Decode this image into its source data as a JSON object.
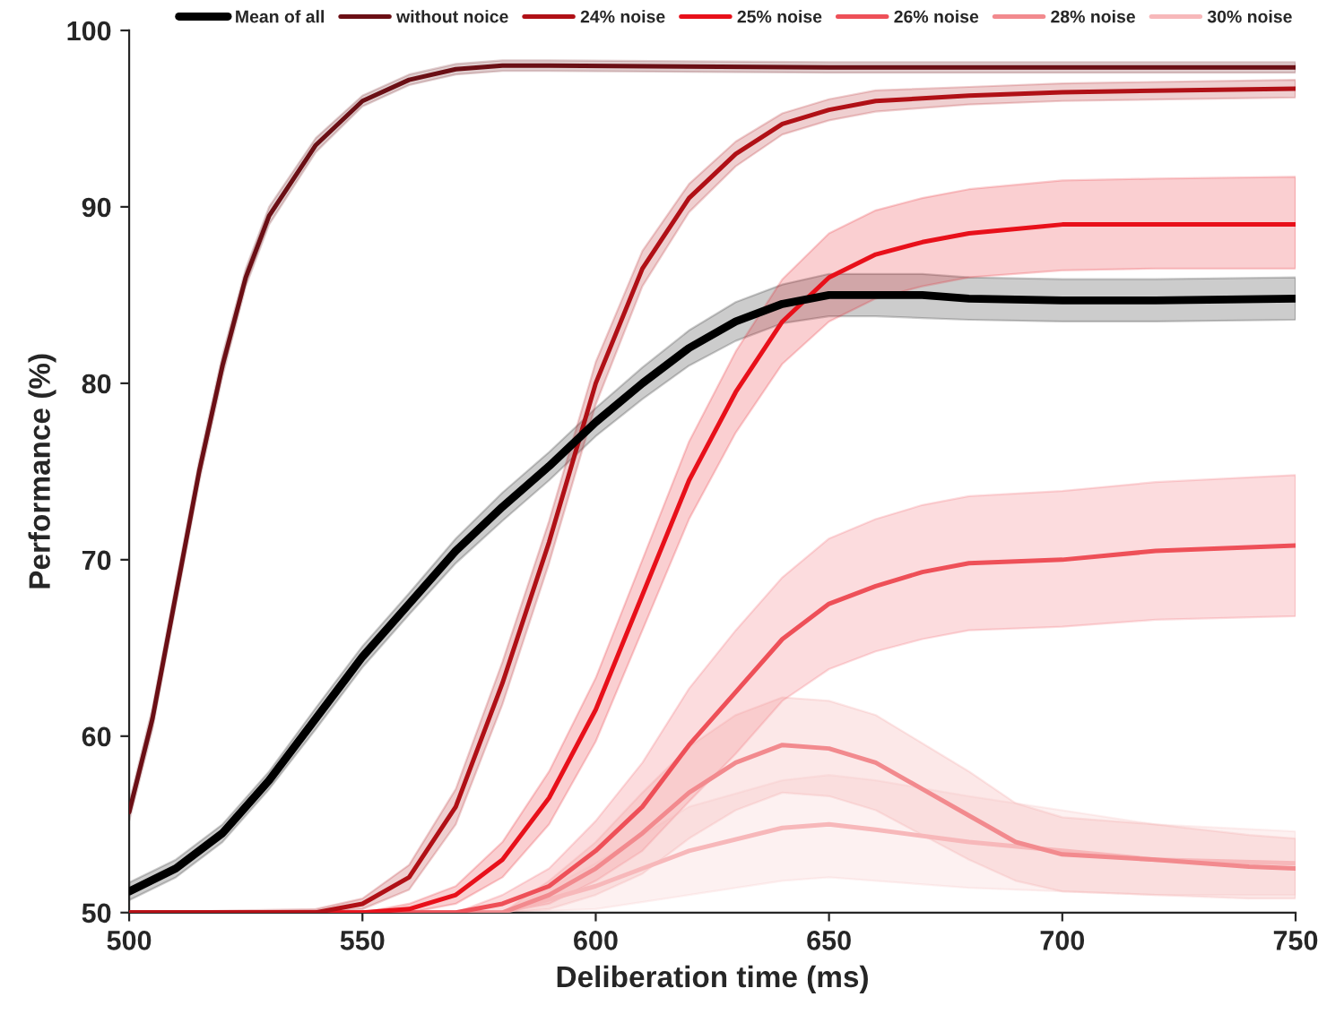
{
  "chart_data": {
    "type": "line",
    "xlabel": "Deliberation time (ms)",
    "ylabel": "Performance (%)",
    "xlim": [
      500,
      750
    ],
    "xticks": [
      500,
      550,
      600,
      650,
      700,
      750
    ],
    "ylim": [
      50,
      100
    ],
    "yticks": [
      50,
      60,
      70,
      80,
      90,
      100
    ],
    "grid": false,
    "legend": "top",
    "marker": "none",
    "line_style": "solid",
    "series": [
      {
        "name": "Mean of all",
        "color": "#000000",
        "x": [
          500,
          510,
          520,
          530,
          540,
          550,
          560,
          570,
          580,
          590,
          600,
          610,
          620,
          630,
          640,
          650,
          660,
          670,
          680,
          700,
          720,
          750
        ],
        "values": [
          51.2,
          52.5,
          54.5,
          57.5,
          61,
          64.5,
          67.5,
          70.5,
          73,
          75.3,
          77.8,
          80,
          82,
          83.5,
          84.5,
          85,
          85,
          85,
          84.8,
          84.7,
          84.7,
          84.8
        ],
        "lower": [
          50.7,
          52,
          54,
          57,
          60.4,
          63.9,
          66.9,
          69.8,
          72.2,
          74.5,
          77,
          79.1,
          81,
          82.4,
          83.4,
          83.8,
          83.8,
          83.7,
          83.6,
          83.5,
          83.5,
          83.6
        ],
        "upper": [
          51.7,
          53,
          55,
          58,
          61.6,
          65.1,
          68.1,
          71.2,
          73.8,
          76.1,
          78.6,
          80.9,
          83,
          84.6,
          85.6,
          86.2,
          86.2,
          86.2,
          86,
          85.9,
          85.9,
          86
        ]
      },
      {
        "name": "without noice",
        "color": "#6b0f15",
        "x": [
          500,
          505,
          510,
          515,
          520,
          525,
          530,
          540,
          550,
          560,
          570,
          580,
          590,
          650,
          700,
          750
        ],
        "values": [
          55.7,
          61,
          68,
          75,
          81,
          86,
          89.5,
          93.5,
          96,
          97.2,
          97.8,
          98,
          98,
          97.9,
          97.9,
          97.9
        ],
        "lower": [
          55.2,
          60.4,
          67.4,
          74.4,
          80.4,
          85.5,
          89,
          93.1,
          95.7,
          96.9,
          97.5,
          97.7,
          97.7,
          97.6,
          97.6,
          97.6
        ],
        "upper": [
          56.2,
          61.6,
          68.6,
          75.6,
          81.6,
          86.5,
          90,
          93.9,
          96.3,
          97.5,
          98.1,
          98.3,
          98.3,
          98.2,
          98.2,
          98.2
        ]
      },
      {
        "name": "24% noise",
        "color": "#b01016",
        "x": [
          500,
          540,
          550,
          560,
          570,
          580,
          590,
          600,
          610,
          620,
          630,
          640,
          650,
          660,
          680,
          700,
          750
        ],
        "values": [
          50,
          50,
          50.5,
          52,
          56,
          63,
          71,
          80,
          86.5,
          90.5,
          93,
          94.7,
          95.5,
          96,
          96.3,
          96.5,
          96.7
        ],
        "lower": [
          50,
          50,
          50.2,
          51.3,
          55,
          61.8,
          69.8,
          78.8,
          85.5,
          89.7,
          92.3,
          94.1,
          94.9,
          95.4,
          95.8,
          96,
          96.2
        ],
        "upper": [
          50,
          50.2,
          50.8,
          52.7,
          57,
          64.2,
          72.2,
          81.2,
          87.5,
          91.3,
          93.7,
          95.3,
          96.1,
          96.6,
          96.8,
          97,
          97.2
        ]
      },
      {
        "name": "25% noise",
        "color": "#e8101a",
        "x": [
          500,
          550,
          560,
          570,
          580,
          590,
          600,
          610,
          620,
          630,
          640,
          650,
          660,
          670,
          680,
          700,
          720,
          750
        ],
        "values": [
          50,
          50,
          50.2,
          51,
          53,
          56.5,
          61.5,
          68,
          74.5,
          79.5,
          83.5,
          86,
          87.3,
          88,
          88.5,
          89,
          89,
          89
        ],
        "lower": [
          50,
          50,
          50,
          50.5,
          52,
          55,
          59.7,
          66,
          72.3,
          77.2,
          81.1,
          83.5,
          84.8,
          85.5,
          86,
          86.4,
          86.5,
          86.5
        ],
        "upper": [
          50,
          50,
          50.5,
          51.5,
          54,
          58,
          63.3,
          70,
          76.7,
          81.8,
          85.9,
          88.5,
          89.8,
          90.5,
          91,
          91.5,
          91.6,
          91.7
        ]
      },
      {
        "name": "26% noise",
        "color": "#ee5058",
        "x": [
          500,
          570,
          580,
          590,
          600,
          610,
          620,
          630,
          640,
          650,
          660,
          670,
          680,
          700,
          720,
          750
        ],
        "values": [
          50,
          50,
          50.5,
          51.5,
          53.5,
          56,
          59.5,
          62.5,
          65.5,
          67.5,
          68.5,
          69.3,
          69.8,
          70,
          70.5,
          70.8
        ],
        "lower": [
          50,
          50,
          50,
          50.5,
          51.8,
          53.5,
          56.3,
          59,
          62,
          63.8,
          64.8,
          65.5,
          66,
          66.2,
          66.6,
          66.8
        ],
        "upper": [
          50,
          50,
          51,
          52.5,
          55.2,
          58.5,
          62.7,
          66,
          69,
          71.2,
          72.3,
          73.1,
          73.6,
          73.9,
          74.4,
          74.8
        ]
      },
      {
        "name": "28% noise",
        "color": "#f28a8e",
        "x": [
          500,
          580,
          590,
          600,
          610,
          620,
          630,
          640,
          650,
          660,
          670,
          680,
          690,
          700,
          720,
          740,
          750
        ],
        "values": [
          50,
          50,
          51,
          52.5,
          54.5,
          56.8,
          58.5,
          59.5,
          59.3,
          58.5,
          57,
          55.5,
          54,
          53.3,
          53,
          52.6,
          52.5
        ],
        "lower": [
          50,
          50,
          50.2,
          51,
          52.2,
          54.2,
          55.8,
          56.8,
          56.6,
          55.8,
          54.4,
          53,
          51.8,
          51.2,
          51,
          50.8,
          50.8
        ],
        "upper": [
          50,
          50,
          51.8,
          54,
          56.8,
          59.4,
          61.2,
          62.2,
          62,
          61.2,
          59.6,
          58,
          56.2,
          55.4,
          55,
          54.4,
          54.2
        ]
      },
      {
        "name": "30% noise",
        "color": "#f7b8ba",
        "x": [
          500,
          580,
          600,
          620,
          640,
          650,
          660,
          680,
          700,
          720,
          750
        ],
        "values": [
          50,
          50,
          51.5,
          53.5,
          54.8,
          55,
          54.7,
          54,
          53.5,
          53,
          52.8
        ],
        "lower": [
          50,
          50,
          50.2,
          51,
          51.8,
          52,
          51.8,
          51.4,
          51.2,
          51,
          51
        ],
        "upper": [
          50,
          50,
          52.8,
          56,
          57.5,
          57.8,
          57.5,
          56.6,
          55.8,
          55,
          54.6
        ]
      }
    ]
  }
}
